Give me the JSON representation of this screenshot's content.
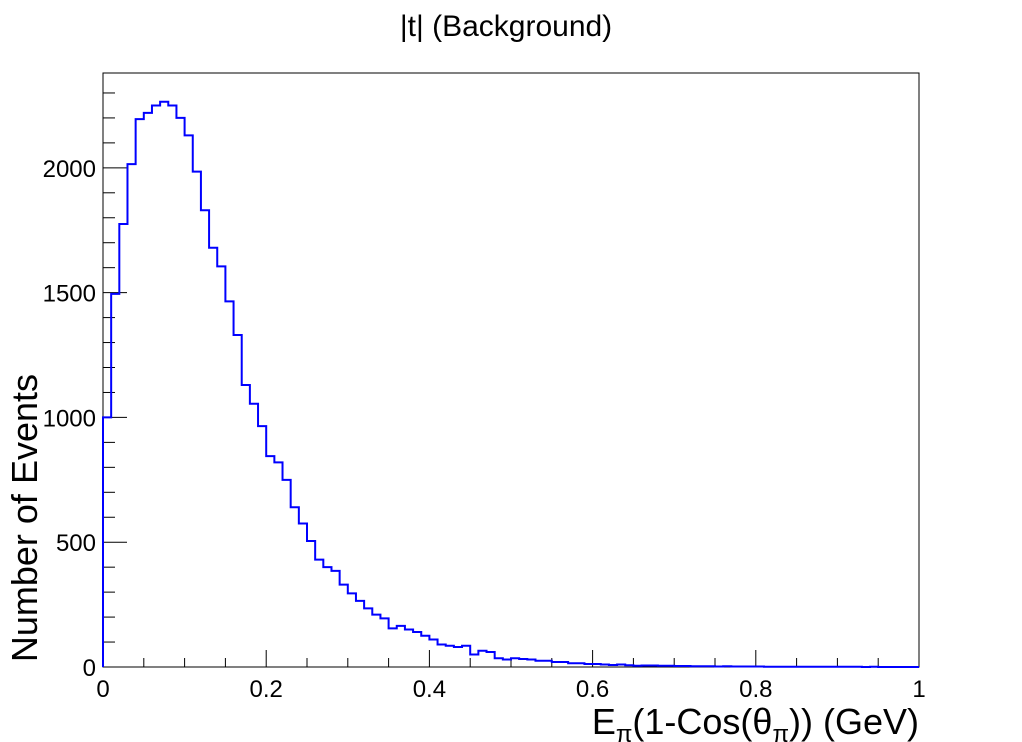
{
  "chart_data": {
    "type": "histogram",
    "title": "|t| (Background)",
    "xlabel": {
      "prefix": "E",
      "sub1": "π",
      "middle": "(1-Cos(θ",
      "sub2": "π",
      "suffix": ")) (GeV)"
    },
    "ylabel": "Number of Events",
    "xlim": [
      0,
      1
    ],
    "ylim": [
      0,
      2380
    ],
    "xticks": [
      0,
      0.2,
      0.4,
      0.6,
      0.8,
      1
    ],
    "xtick_labels": [
      "0",
      "0.2",
      "0.4",
      "0.6",
      "0.8",
      "1"
    ],
    "yticks": [
      0,
      500,
      1000,
      1500,
      2000
    ],
    "ytick_labels": [
      "0",
      "500",
      "1000",
      "1500",
      "2000"
    ],
    "bin_width": 0.01,
    "bin_start": 0,
    "values": [
      1000,
      1495,
      1775,
      2015,
      2195,
      2220,
      2250,
      2265,
      2250,
      2200,
      2130,
      1985,
      1830,
      1680,
      1605,
      1465,
      1330,
      1130,
      1055,
      965,
      845,
      820,
      750,
      640,
      575,
      505,
      430,
      400,
      385,
      330,
      295,
      265,
      235,
      210,
      195,
      155,
      165,
      150,
      140,
      125,
      110,
      90,
      85,
      80,
      85,
      50,
      65,
      60,
      35,
      30,
      35,
      32,
      30,
      25,
      25,
      20,
      20,
      15,
      15,
      12,
      12,
      10,
      8,
      10,
      7,
      5,
      6,
      6,
      5,
      5,
      4,
      4,
      3,
      3,
      3,
      2,
      3,
      2,
      2,
      2,
      2,
      1,
      1,
      1,
      1,
      1,
      1,
      1,
      1,
      1,
      1,
      1,
      1,
      0,
      1,
      0,
      0,
      0,
      0,
      0
    ],
    "line_color": "#0000ff",
    "grid": false
  }
}
